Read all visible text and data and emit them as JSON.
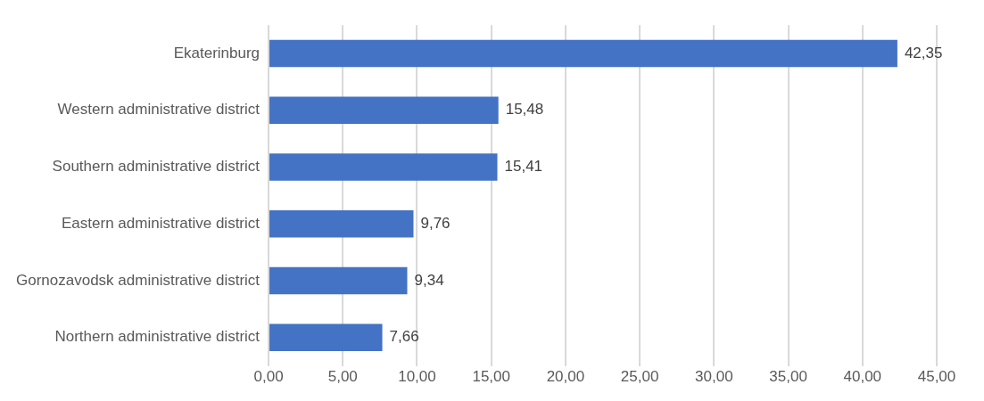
{
  "chart_data": {
    "type": "bar",
    "orientation": "horizontal",
    "categories": [
      "Ekaterinburg",
      "Western administrative district",
      "Southern administrative district",
      "Eastern administrative district",
      "Gornozavodsk administrative district",
      "Northern administrative district"
    ],
    "values": [
      42.35,
      15.48,
      15.41,
      9.76,
      9.34,
      7.66
    ],
    "value_labels": [
      "42,35",
      "15,48",
      "15,41",
      "9,76",
      "9,34",
      "7,66"
    ],
    "color": "#4472c4",
    "xlim": [
      0,
      45
    ],
    "xticks": [
      {
        "value": 0,
        "label": "0,00"
      },
      {
        "value": 5,
        "label": "5,00"
      },
      {
        "value": 10,
        "label": "10,00"
      },
      {
        "value": 15,
        "label": "15,00"
      },
      {
        "value": 20,
        "label": "20,00"
      },
      {
        "value": 25,
        "label": "25,00"
      },
      {
        "value": 30,
        "label": "30,00"
      },
      {
        "value": 35,
        "label": "35,00"
      },
      {
        "value": 40,
        "label": "40,00"
      },
      {
        "value": 45,
        "label": "45,00"
      }
    ],
    "grid": "x",
    "legend": false
  }
}
